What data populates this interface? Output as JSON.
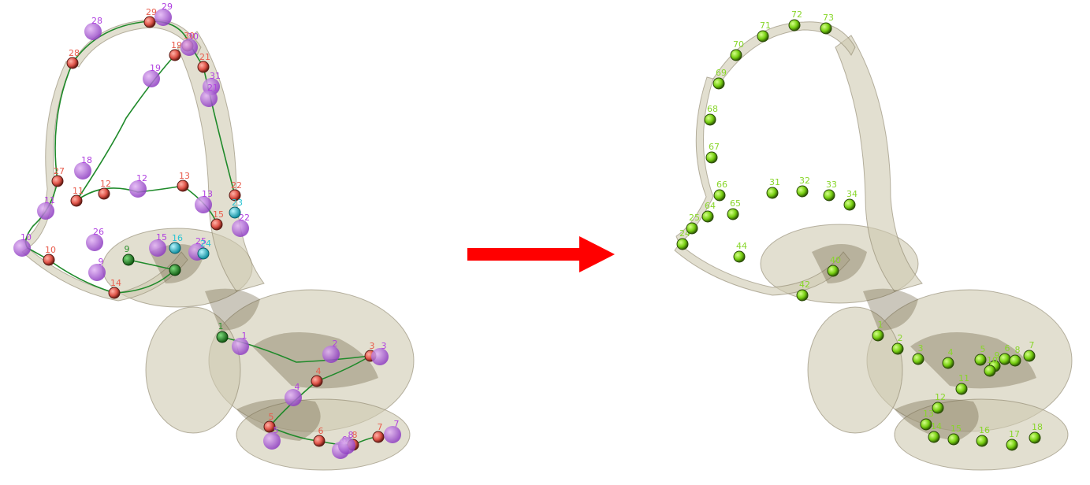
{
  "colors": {
    "background": "#ffffff",
    "bone_fill": "#cfc9b0",
    "bone_shadow": "#6b5f3f",
    "red_landmark": "#e0554a",
    "purple_landmark": "#a95ad6",
    "green_landmark": "#2f8f2f",
    "cyan_landmark": "#27c4d4",
    "lime_landmark": "#78d012",
    "red_label": "#e85c4c",
    "purple_label": "#b040e0",
    "lime_label": "#88d62a",
    "curve": "#1f8a2a",
    "arrow": "#ff0000"
  },
  "left": {
    "red_points": [
      {
        "label": "29"
      },
      {
        "label": "28"
      },
      {
        "label": "19"
      },
      {
        "label": "27"
      },
      {
        "label": "12"
      },
      {
        "label": "13"
      },
      {
        "label": "22"
      },
      {
        "label": "21"
      },
      {
        "label": "11"
      },
      {
        "label": "10"
      },
      {
        "label": "14"
      },
      {
        "label": "3"
      },
      {
        "label": "4"
      },
      {
        "label": "5"
      },
      {
        "label": "6"
      },
      {
        "label": "8"
      },
      {
        "label": "7"
      },
      {
        "label": "30"
      },
      {
        "label": "15"
      }
    ],
    "purple_points": [
      {
        "label": "28"
      },
      {
        "label": "29"
      },
      {
        "label": "30"
      },
      {
        "label": "19"
      },
      {
        "label": "31"
      },
      {
        "label": "21"
      },
      {
        "label": "18"
      },
      {
        "label": "12"
      },
      {
        "label": "13"
      },
      {
        "label": "11"
      },
      {
        "label": "26"
      },
      {
        "label": "22"
      },
      {
        "label": "10"
      },
      {
        "label": "9"
      },
      {
        "label": "15"
      },
      {
        "label": "2"
      },
      {
        "label": "3"
      },
      {
        "label": "4"
      },
      {
        "label": "6"
      },
      {
        "label": "8"
      },
      {
        "label": "7"
      },
      {
        "label": "5"
      },
      {
        "label": "1"
      },
      {
        "label": "25"
      }
    ],
    "green_points": [
      {
        "label": "1"
      },
      {
        "label": "9"
      },
      {
        "label": ""
      }
    ],
    "cyan_points": [
      {
        "label": "23"
      },
      {
        "label": "24"
      },
      {
        "label": "16"
      }
    ]
  },
  "right": {
    "lime_points": [
      {
        "label": "72"
      },
      {
        "label": "73"
      },
      {
        "label": "71"
      },
      {
        "label": "70"
      },
      {
        "label": "69"
      },
      {
        "label": "68"
      },
      {
        "label": "67"
      },
      {
        "label": "66"
      },
      {
        "label": "65"
      },
      {
        "label": "64"
      },
      {
        "label": "31"
      },
      {
        "label": "32"
      },
      {
        "label": "33"
      },
      {
        "label": "34"
      },
      {
        "label": "24"
      },
      {
        "label": "25"
      },
      {
        "label": "44"
      },
      {
        "label": "40"
      },
      {
        "label": "42"
      },
      {
        "label": "1"
      },
      {
        "label": "2"
      },
      {
        "label": "3"
      },
      {
        "label": "4"
      },
      {
        "label": "5"
      },
      {
        "label": "6"
      },
      {
        "label": "7"
      },
      {
        "label": "8"
      },
      {
        "label": "9"
      },
      {
        "label": "10"
      },
      {
        "label": "11"
      },
      {
        "label": "12"
      },
      {
        "label": "13"
      },
      {
        "label": "14"
      },
      {
        "label": "15"
      },
      {
        "label": "16"
      },
      {
        "label": "17"
      },
      {
        "label": "18"
      }
    ]
  }
}
